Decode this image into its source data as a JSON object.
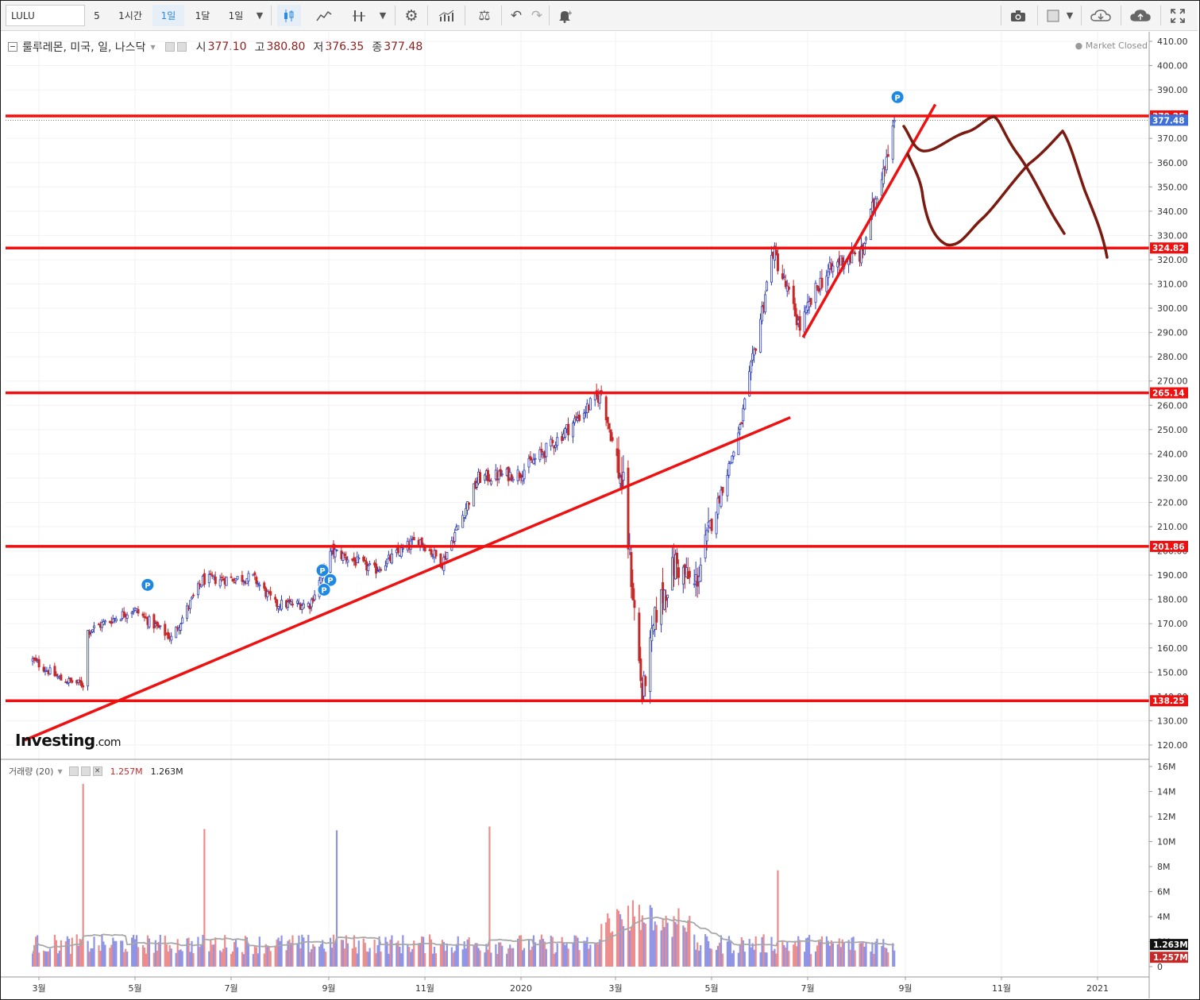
{
  "toolbar": {
    "symbol": "LULU",
    "interval_5": "5",
    "interval_1h": "1시간",
    "interval_1d": "1일",
    "interval_1mo": "1달",
    "range": "1일"
  },
  "header": {
    "name": "룰루레몬, 미국, 일, 나스닥",
    "open_label": "시",
    "open": "377.10",
    "high_label": "고",
    "high": "380.80",
    "low_label": "저",
    "low": "376.35",
    "close_label": "종",
    "close": "377.48",
    "status": "Market Closed"
  },
  "volume_header": {
    "label": "거래량 (20)",
    "value1": "1.257M",
    "value2": "1.263M"
  },
  "logo": {
    "main": "Investing",
    "suffix": ".com"
  },
  "colors": {
    "up": "#2f3fb8",
    "down": "#c62828",
    "hline": "#ee1111",
    "drawing": "#7a1a10",
    "vol_up": "#8f94e6",
    "vol_down": "#ec8c8c"
  },
  "chart_data": [
    {
      "type": "candlestick",
      "title": "룰루레몬, 미국, 일, 나스닥",
      "x_tick_labels": [
        "3월",
        "5월",
        "7월",
        "9월",
        "11월",
        "2020",
        "3월",
        "5월",
        "7월",
        "9월",
        "11월",
        "2021"
      ],
      "y_ticks": [
        120,
        130,
        140,
        150,
        160,
        170,
        180,
        190,
        200,
        210,
        220,
        230,
        240,
        250,
        260,
        270,
        280,
        290,
        300,
        310,
        320,
        330,
        340,
        350,
        360,
        370,
        380,
        390,
        400,
        410
      ],
      "ylim": [
        116,
        413
      ],
      "price_path": [
        [
          "2019-02-25",
          155
        ],
        [
          "2019-03-15",
          147
        ],
        [
          "2019-03-29",
          145
        ],
        [
          "2019-04-01",
          167
        ],
        [
          "2019-04-30",
          176
        ],
        [
          "2019-05-24",
          164
        ],
        [
          "2019-06-13",
          188
        ],
        [
          "2019-07-15",
          189
        ],
        [
          "2019-07-29",
          178
        ],
        [
          "2019-08-20",
          178
        ],
        [
          "2019-09-03",
          200
        ],
        [
          "2019-09-30",
          192
        ],
        [
          "2019-10-28",
          205
        ],
        [
          "2019-11-12",
          195
        ],
        [
          "2019-12-05",
          230
        ],
        [
          "2019-12-31",
          232
        ],
        [
          "2020-01-21",
          244
        ],
        [
          "2020-02-21",
          265
        ],
        [
          "2020-03-06",
          225
        ],
        [
          "2020-03-18",
          140
        ],
        [
          "2020-03-27",
          175
        ],
        [
          "2020-04-08",
          195
        ],
        [
          "2020-04-20",
          185
        ],
        [
          "2020-05-05",
          220
        ],
        [
          "2020-05-19",
          250
        ],
        [
          "2020-06-09",
          324
        ],
        [
          "2020-06-26",
          292
        ],
        [
          "2020-07-08",
          310
        ],
        [
          "2020-07-22",
          320
        ],
        [
          "2020-08-04",
          322
        ],
        [
          "2020-08-25",
          377
        ]
      ],
      "last_price": 377.48,
      "horizontal_levels": [
        379.25,
        324.82,
        265.14,
        201.86,
        138.25
      ],
      "trend_lines": [
        [
          [
            "2019-02-20",
            122
          ],
          [
            "2020-06-20",
            255
          ]
        ],
        [
          [
            "2020-06-28",
            288
          ],
          [
            "2020-09-20",
            384
          ]
        ]
      ],
      "markers": [
        [
          "2019-05-09",
          186,
          "P"
        ],
        [
          "2019-08-28",
          192,
          "P"
        ],
        [
          "2019-09-02",
          188,
          "P"
        ],
        [
          "2019-08-29",
          184,
          "P"
        ],
        [
          "2020-08-27",
          387,
          "P"
        ]
      ]
    },
    {
      "type": "bar",
      "title": "거래량 (20)",
      "y_tick_labels": [
        "0",
        "2M",
        "4M",
        "6M",
        "8M",
        "10M",
        "12M",
        "14M",
        "16M"
      ],
      "ylim_millions": [
        0,
        16
      ],
      "spikes_millions": [
        [
          "2019-03-29",
          14.6
        ],
        [
          "2019-06-14",
          11.0
        ],
        [
          "2019-09-06",
          10.9
        ],
        [
          "2019-12-12",
          11.2
        ],
        [
          "2020-03-12",
          5.3
        ],
        [
          "2020-06-12",
          7.7
        ]
      ],
      "moving_average_period": 20,
      "last_values": [
        "1.263M",
        "1.257M"
      ]
    }
  ]
}
